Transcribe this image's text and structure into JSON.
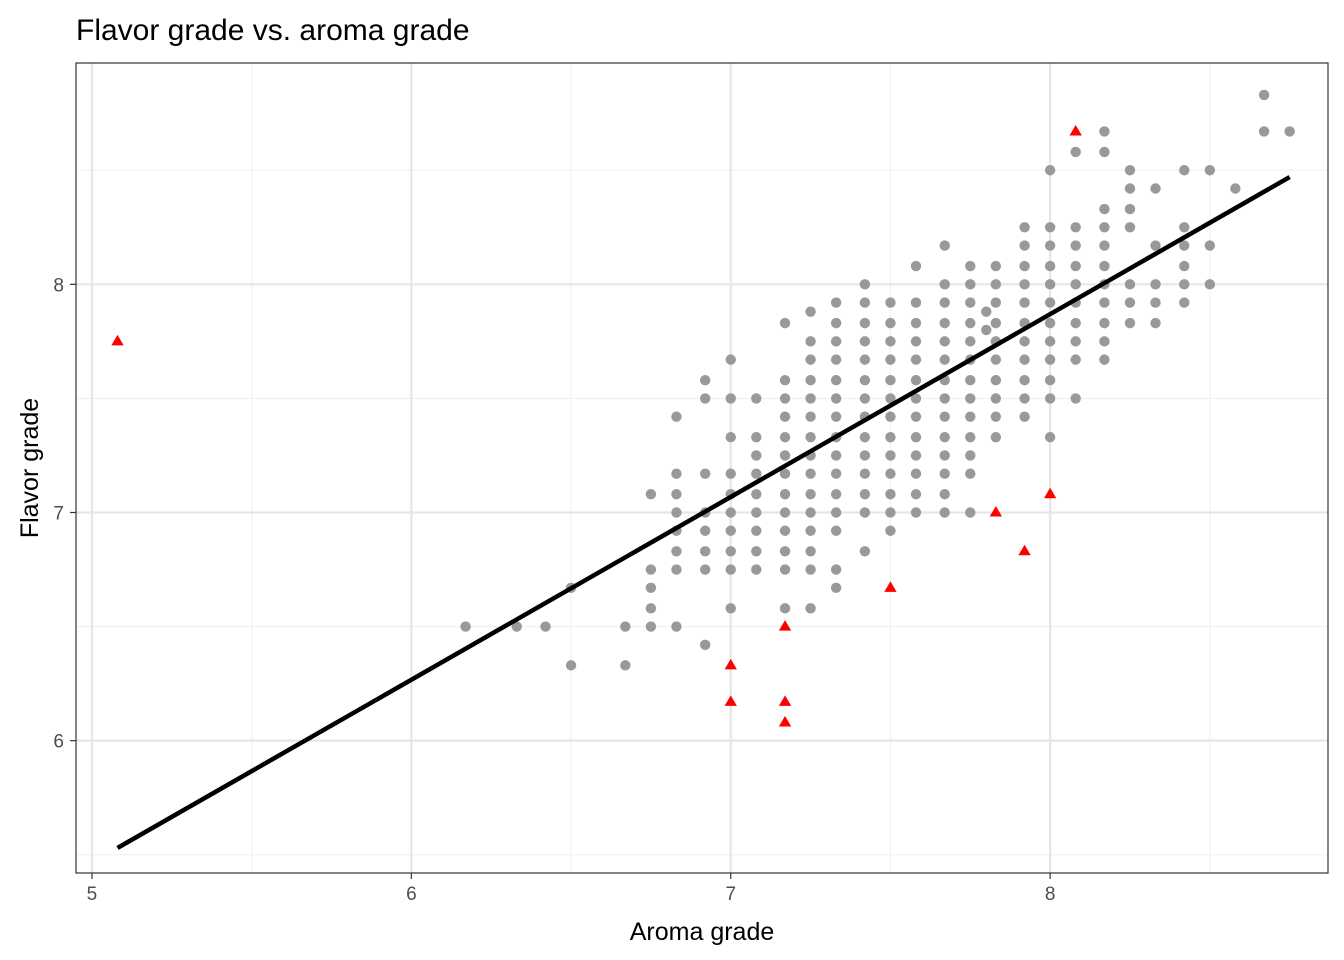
{
  "chart_data": {
    "type": "scatter",
    "title": "Flavor grade vs. aroma grade",
    "xlabel": "Aroma grade",
    "ylabel": "Flavor grade",
    "xlim": [
      4.95,
      8.87
    ],
    "ylim": [
      5.42,
      8.97
    ],
    "x_ticks": [
      5,
      6,
      7,
      8
    ],
    "y_ticks": [
      6,
      7,
      8
    ],
    "grid": true,
    "colors": {
      "normal": "#999999",
      "outlier": "#ff0000",
      "fit": "#000000"
    },
    "fit_line": {
      "x": [
        5.08,
        8.75
      ],
      "y": [
        5.53,
        8.47
      ]
    },
    "series": [
      {
        "marker": "circle",
        "color": "#999999",
        "points": [
          [
            6.17,
            6.5
          ],
          [
            6.33,
            6.5
          ],
          [
            6.42,
            6.5
          ],
          [
            6.5,
            6.33
          ],
          [
            6.5,
            6.67
          ],
          [
            6.67,
            6.33
          ],
          [
            6.67,
            6.5
          ],
          [
            6.75,
            6.5
          ],
          [
            6.75,
            6.58
          ],
          [
            6.75,
            6.67
          ],
          [
            6.75,
            6.75
          ],
          [
            6.75,
            7.08
          ],
          [
            6.83,
            6.5
          ],
          [
            6.83,
            6.75
          ],
          [
            6.83,
            6.83
          ],
          [
            6.83,
            6.92
          ],
          [
            6.83,
            7.0
          ],
          [
            6.83,
            7.08
          ],
          [
            6.83,
            7.17
          ],
          [
            6.83,
            7.42
          ],
          [
            6.92,
            6.42
          ],
          [
            6.92,
            6.75
          ],
          [
            6.92,
            6.83
          ],
          [
            6.92,
            6.92
          ],
          [
            6.92,
            7.0
          ],
          [
            6.92,
            7.17
          ],
          [
            6.92,
            7.5
          ],
          [
            6.92,
            7.58
          ],
          [
            7.0,
            6.58
          ],
          [
            7.0,
            6.75
          ],
          [
            7.0,
            6.83
          ],
          [
            7.0,
            6.92
          ],
          [
            7.0,
            7.0
          ],
          [
            7.0,
            7.08
          ],
          [
            7.0,
            7.17
          ],
          [
            7.0,
            7.33
          ],
          [
            7.0,
            7.5
          ],
          [
            7.0,
            7.67
          ],
          [
            7.08,
            6.75
          ],
          [
            7.08,
            6.83
          ],
          [
            7.08,
            6.92
          ],
          [
            7.08,
            7.0
          ],
          [
            7.08,
            7.08
          ],
          [
            7.08,
            7.17
          ],
          [
            7.08,
            7.25
          ],
          [
            7.08,
            7.33
          ],
          [
            7.08,
            7.5
          ],
          [
            7.17,
            6.58
          ],
          [
            7.17,
            6.75
          ],
          [
            7.17,
            6.83
          ],
          [
            7.17,
            6.92
          ],
          [
            7.17,
            7.0
          ],
          [
            7.17,
            7.08
          ],
          [
            7.17,
            7.17
          ],
          [
            7.17,
            7.25
          ],
          [
            7.17,
            7.33
          ],
          [
            7.17,
            7.42
          ],
          [
            7.17,
            7.5
          ],
          [
            7.17,
            7.58
          ],
          [
            7.17,
            7.83
          ],
          [
            7.25,
            6.58
          ],
          [
            7.25,
            6.75
          ],
          [
            7.25,
            6.83
          ],
          [
            7.25,
            6.92
          ],
          [
            7.25,
            7.0
          ],
          [
            7.25,
            7.08
          ],
          [
            7.25,
            7.17
          ],
          [
            7.25,
            7.25
          ],
          [
            7.25,
            7.33
          ],
          [
            7.25,
            7.42
          ],
          [
            7.25,
            7.5
          ],
          [
            7.25,
            7.58
          ],
          [
            7.25,
            7.67
          ],
          [
            7.25,
            7.75
          ],
          [
            7.25,
            7.88
          ],
          [
            7.33,
            6.67
          ],
          [
            7.33,
            6.75
          ],
          [
            7.33,
            6.92
          ],
          [
            7.33,
            7.0
          ],
          [
            7.33,
            7.08
          ],
          [
            7.33,
            7.17
          ],
          [
            7.33,
            7.25
          ],
          [
            7.33,
            7.33
          ],
          [
            7.33,
            7.42
          ],
          [
            7.33,
            7.5
          ],
          [
            7.33,
            7.58
          ],
          [
            7.33,
            7.67
          ],
          [
            7.33,
            7.75
          ],
          [
            7.33,
            7.83
          ],
          [
            7.33,
            7.92
          ],
          [
            7.42,
            6.83
          ],
          [
            7.42,
            7.0
          ],
          [
            7.42,
            7.08
          ],
          [
            7.42,
            7.17
          ],
          [
            7.42,
            7.25
          ],
          [
            7.42,
            7.33
          ],
          [
            7.42,
            7.42
          ],
          [
            7.42,
            7.5
          ],
          [
            7.42,
            7.58
          ],
          [
            7.42,
            7.67
          ],
          [
            7.42,
            7.75
          ],
          [
            7.42,
            7.83
          ],
          [
            7.42,
            7.92
          ],
          [
            7.42,
            8.0
          ],
          [
            7.5,
            6.92
          ],
          [
            7.5,
            7.0
          ],
          [
            7.5,
            7.08
          ],
          [
            7.5,
            7.17
          ],
          [
            7.5,
            7.25
          ],
          [
            7.5,
            7.33
          ],
          [
            7.5,
            7.42
          ],
          [
            7.5,
            7.5
          ],
          [
            7.5,
            7.58
          ],
          [
            7.5,
            7.67
          ],
          [
            7.5,
            7.75
          ],
          [
            7.5,
            7.83
          ],
          [
            7.5,
            7.92
          ],
          [
            7.58,
            7.0
          ],
          [
            7.58,
            7.08
          ],
          [
            7.58,
            7.17
          ],
          [
            7.58,
            7.25
          ],
          [
            7.58,
            7.33
          ],
          [
            7.58,
            7.42
          ],
          [
            7.58,
            7.5
          ],
          [
            7.58,
            7.58
          ],
          [
            7.58,
            7.67
          ],
          [
            7.58,
            7.75
          ],
          [
            7.58,
            7.83
          ],
          [
            7.58,
            7.92
          ],
          [
            7.58,
            8.08
          ],
          [
            7.67,
            7.0
          ],
          [
            7.67,
            7.08
          ],
          [
            7.67,
            7.17
          ],
          [
            7.67,
            7.25
          ],
          [
            7.67,
            7.33
          ],
          [
            7.67,
            7.42
          ],
          [
            7.67,
            7.5
          ],
          [
            7.67,
            7.58
          ],
          [
            7.67,
            7.67
          ],
          [
            7.67,
            7.75
          ],
          [
            7.67,
            7.83
          ],
          [
            7.67,
            7.92
          ],
          [
            7.67,
            8.0
          ],
          [
            7.67,
            8.17
          ],
          [
            7.75,
            7.0
          ],
          [
            7.75,
            7.17
          ],
          [
            7.75,
            7.25
          ],
          [
            7.75,
            7.33
          ],
          [
            7.75,
            7.42
          ],
          [
            7.75,
            7.5
          ],
          [
            7.75,
            7.58
          ],
          [
            7.75,
            7.67
          ],
          [
            7.75,
            7.75
          ],
          [
            7.75,
            7.83
          ],
          [
            7.75,
            7.92
          ],
          [
            7.75,
            8.0
          ],
          [
            7.75,
            8.08
          ],
          [
            7.8,
            7.88
          ],
          [
            7.8,
            7.8
          ],
          [
            7.83,
            7.33
          ],
          [
            7.83,
            7.42
          ],
          [
            7.83,
            7.5
          ],
          [
            7.83,
            7.58
          ],
          [
            7.83,
            7.67
          ],
          [
            7.83,
            7.75
          ],
          [
            7.83,
            7.83
          ],
          [
            7.83,
            7.92
          ],
          [
            7.83,
            8.0
          ],
          [
            7.83,
            8.08
          ],
          [
            7.92,
            7.42
          ],
          [
            7.92,
            7.5
          ],
          [
            7.92,
            7.58
          ],
          [
            7.92,
            7.67
          ],
          [
            7.92,
            7.75
          ],
          [
            7.92,
            7.83
          ],
          [
            7.92,
            7.92
          ],
          [
            7.92,
            8.0
          ],
          [
            7.92,
            8.08
          ],
          [
            7.92,
            8.17
          ],
          [
            7.92,
            8.25
          ],
          [
            8.0,
            7.33
          ],
          [
            8.0,
            7.5
          ],
          [
            8.0,
            7.58
          ],
          [
            8.0,
            7.67
          ],
          [
            8.0,
            7.75
          ],
          [
            8.0,
            7.83
          ],
          [
            8.0,
            7.92
          ],
          [
            8.0,
            8.0
          ],
          [
            8.0,
            8.08
          ],
          [
            8.0,
            8.17
          ],
          [
            8.0,
            8.25
          ],
          [
            8.0,
            8.5
          ],
          [
            8.08,
            7.5
          ],
          [
            8.08,
            7.67
          ],
          [
            8.08,
            7.75
          ],
          [
            8.08,
            7.83
          ],
          [
            8.08,
            7.92
          ],
          [
            8.08,
            8.0
          ],
          [
            8.08,
            8.08
          ],
          [
            8.08,
            8.17
          ],
          [
            8.08,
            8.25
          ],
          [
            8.08,
            8.58
          ],
          [
            8.17,
            7.67
          ],
          [
            8.17,
            7.75
          ],
          [
            8.17,
            7.83
          ],
          [
            8.17,
            7.92
          ],
          [
            8.17,
            8.0
          ],
          [
            8.17,
            8.08
          ],
          [
            8.17,
            8.17
          ],
          [
            8.17,
            8.25
          ],
          [
            8.17,
            8.33
          ],
          [
            8.17,
            8.58
          ],
          [
            8.17,
            8.67
          ],
          [
            8.25,
            7.83
          ],
          [
            8.25,
            7.92
          ],
          [
            8.25,
            8.0
          ],
          [
            8.25,
            8.25
          ],
          [
            8.25,
            8.33
          ],
          [
            8.25,
            8.42
          ],
          [
            8.25,
            8.5
          ],
          [
            8.33,
            7.83
          ],
          [
            8.33,
            7.92
          ],
          [
            8.33,
            8.0
          ],
          [
            8.33,
            8.17
          ],
          [
            8.33,
            8.42
          ],
          [
            8.42,
            7.92
          ],
          [
            8.42,
            8.0
          ],
          [
            8.42,
            8.08
          ],
          [
            8.42,
            8.17
          ],
          [
            8.42,
            8.25
          ],
          [
            8.42,
            8.5
          ],
          [
            8.5,
            8.0
          ],
          [
            8.5,
            8.17
          ],
          [
            8.5,
            8.5
          ],
          [
            8.58,
            8.42
          ],
          [
            8.67,
            8.67
          ],
          [
            8.67,
            8.83
          ],
          [
            8.75,
            8.67
          ]
        ]
      },
      {
        "marker": "triangle",
        "color": "#ff0000",
        "points": [
          [
            5.08,
            7.75
          ],
          [
            7.0,
            6.33
          ],
          [
            7.0,
            6.17
          ],
          [
            7.17,
            6.5
          ],
          [
            7.17,
            6.17
          ],
          [
            7.17,
            6.08
          ],
          [
            7.5,
            6.67
          ],
          [
            7.83,
            7.0
          ],
          [
            7.92,
            6.83
          ],
          [
            8.0,
            7.08
          ],
          [
            8.08,
            8.67
          ]
        ]
      }
    ]
  }
}
